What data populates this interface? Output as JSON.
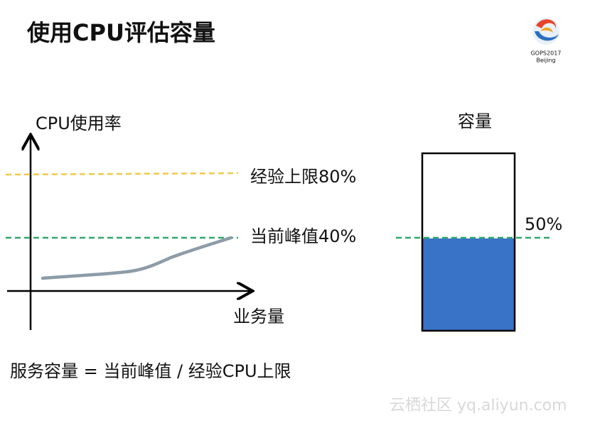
{
  "title": "使用CPU评估容量",
  "logo": {
    "name": "GOPS2017",
    "city": "Beijing"
  },
  "left_diagram": {
    "y_axis_label": "CPU使用率",
    "x_axis_label": "业务量",
    "upper_line_label": "经验上限80%",
    "current_line_label": "当前峰值40%"
  },
  "right_diagram": {
    "title": "容量",
    "level_label": "50%"
  },
  "formula": "服务容量 = 当前峰值 / 经验CPU上限",
  "watermark": "云栖社区 yq.aliyun.com"
}
